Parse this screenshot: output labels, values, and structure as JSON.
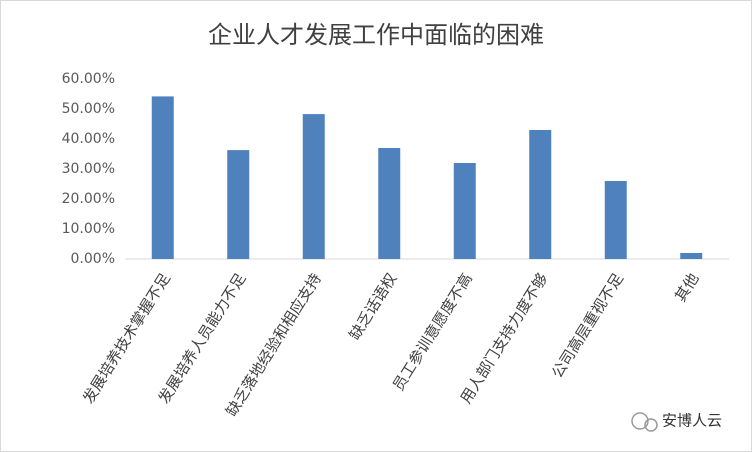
{
  "chart_data": {
    "type": "bar",
    "title": "企业人才发展工作中面临的困难",
    "categories": [
      "发展培养技术掌握不足",
      "发展培养人员能力不足",
      "缺乏落地经验和相应支持",
      "缺乏话语权",
      "员工参训意愿度不高",
      "用人部门支持力度不够",
      "公司高层重视不足",
      "其他"
    ],
    "values": [
      54.2,
      36.3,
      48.3,
      37.0,
      32.0,
      43.0,
      26.0,
      2.0
    ],
    "color": "#4f81bd",
    "ylim": [
      0,
      60
    ],
    "yticks": [
      {
        "value": 0,
        "label": "0.00%"
      },
      {
        "value": 10,
        "label": "10.00%"
      },
      {
        "value": 20,
        "label": "20.00%"
      },
      {
        "value": 30,
        "label": "30.00%"
      },
      {
        "value": 40,
        "label": "40.00%"
      },
      {
        "value": 50,
        "label": "50.00%"
      },
      {
        "value": 60,
        "label": "60.00%"
      }
    ],
    "grid": false,
    "watermark": "安博人云"
  }
}
